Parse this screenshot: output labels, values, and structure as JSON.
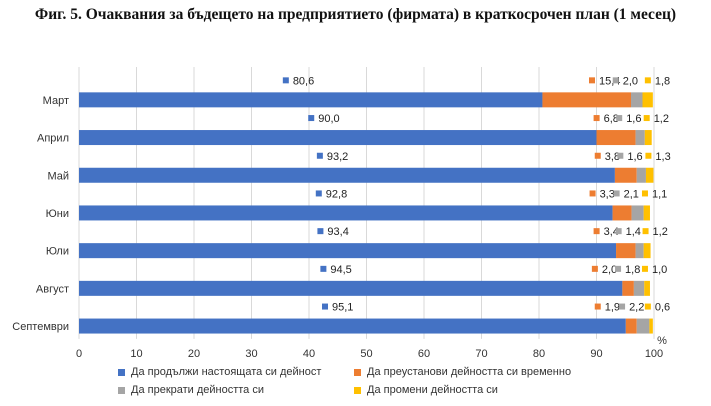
{
  "title": "Фиг. 5. Очаквания за бъдещето на предприятието (фирмата) в краткосрочен план (1 месец)",
  "chart_data": {
    "type": "bar",
    "orientation": "horizontal",
    "stacked": true,
    "categories": [
      "Март",
      "Април",
      "Май",
      "Юни",
      "Юли",
      "Август",
      "Септември"
    ],
    "series": [
      {
        "name": "Да продължи настоящата си дейност",
        "color": "#4472C4",
        "values": [
          80.6,
          90.0,
          93.2,
          92.8,
          93.4,
          94.5,
          95.1
        ],
        "labels": [
          "80,6",
          "90,0",
          "93,2",
          "92,8",
          "93,4",
          "94,5",
          "95,1"
        ]
      },
      {
        "name": "Да преустанови дейността си временно",
        "color": "#ED7D31",
        "values": [
          15.4,
          6.8,
          3.8,
          3.3,
          3.4,
          2.0,
          1.9
        ],
        "labels": [
          "15,4",
          "6,8",
          "3,8",
          "3,3",
          "3,4",
          "2,0",
          "1,9"
        ]
      },
      {
        "name": "Да прекрати дейността си",
        "color": "#A5A5A5",
        "values": [
          2.0,
          1.6,
          1.6,
          2.1,
          1.4,
          1.8,
          2.2
        ],
        "labels": [
          "2,0",
          "1,6",
          "1,6",
          "2,1",
          "1,4",
          "1,8",
          "2,2"
        ]
      },
      {
        "name": "Да промени дейността си",
        "color": "#FFC000",
        "values": [
          1.8,
          1.2,
          1.3,
          1.1,
          1.2,
          1.0,
          0.6
        ],
        "labels": [
          "1,8",
          "1,2",
          "1,3",
          "1,1",
          "1,2",
          "1,0",
          "0,6"
        ]
      }
    ],
    "x_ticks": [
      "0",
      "10",
      "20",
      "30",
      "40",
      "50",
      "60",
      "70",
      "80",
      "90",
      "100"
    ],
    "xlim": [
      0,
      100
    ],
    "unit_label": "%",
    "grid": true,
    "gridline_color": "#D9D9D9",
    "legend_position": "bottom"
  }
}
